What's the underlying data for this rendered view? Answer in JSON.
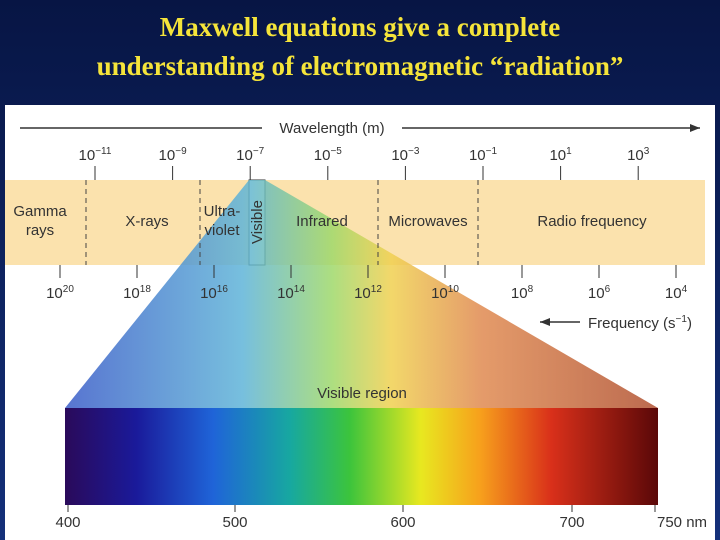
{
  "title": [
    "Maxwell equations give a complete",
    "understanding of electromagnetic “radiation”"
  ],
  "wavelength_axis": {
    "label": "Wavelength (m)",
    "ticks": [
      {
        "base": "10",
        "exp": "−11"
      },
      {
        "base": "10",
        "exp": "−9"
      },
      {
        "base": "10",
        "exp": "−7"
      },
      {
        "base": "10",
        "exp": "−5"
      },
      {
        "base": "10",
        "exp": "−3"
      },
      {
        "base": "10",
        "exp": "−1"
      },
      {
        "base": "10",
        "exp": "1"
      },
      {
        "base": "10",
        "exp": "3"
      }
    ]
  },
  "bands": [
    [
      "Gamma",
      "rays"
    ],
    [
      "X-rays"
    ],
    [
      "Ultra-",
      "violet"
    ],
    [
      "Visible"
    ],
    [
      "Infrared"
    ],
    [
      "Microwaves"
    ],
    [
      "Radio frequency"
    ]
  ],
  "frequency_axis": {
    "label": "Frequency (s",
    "label_exp": "−1",
    "label_end": ")",
    "ticks": [
      {
        "base": "10",
        "exp": "20"
      },
      {
        "base": "10",
        "exp": "18"
      },
      {
        "base": "10",
        "exp": "16"
      },
      {
        "base": "10",
        "exp": "14"
      },
      {
        "base": "10",
        "exp": "12"
      },
      {
        "base": "10",
        "exp": "10"
      },
      {
        "base": "10",
        "exp": "8"
      },
      {
        "base": "10",
        "exp": "6"
      },
      {
        "base": "10",
        "exp": "4"
      }
    ]
  },
  "visible_region": {
    "label": "Visible region",
    "ticks": [
      "400",
      "500",
      "600",
      "700",
      "750 nm"
    ]
  }
}
